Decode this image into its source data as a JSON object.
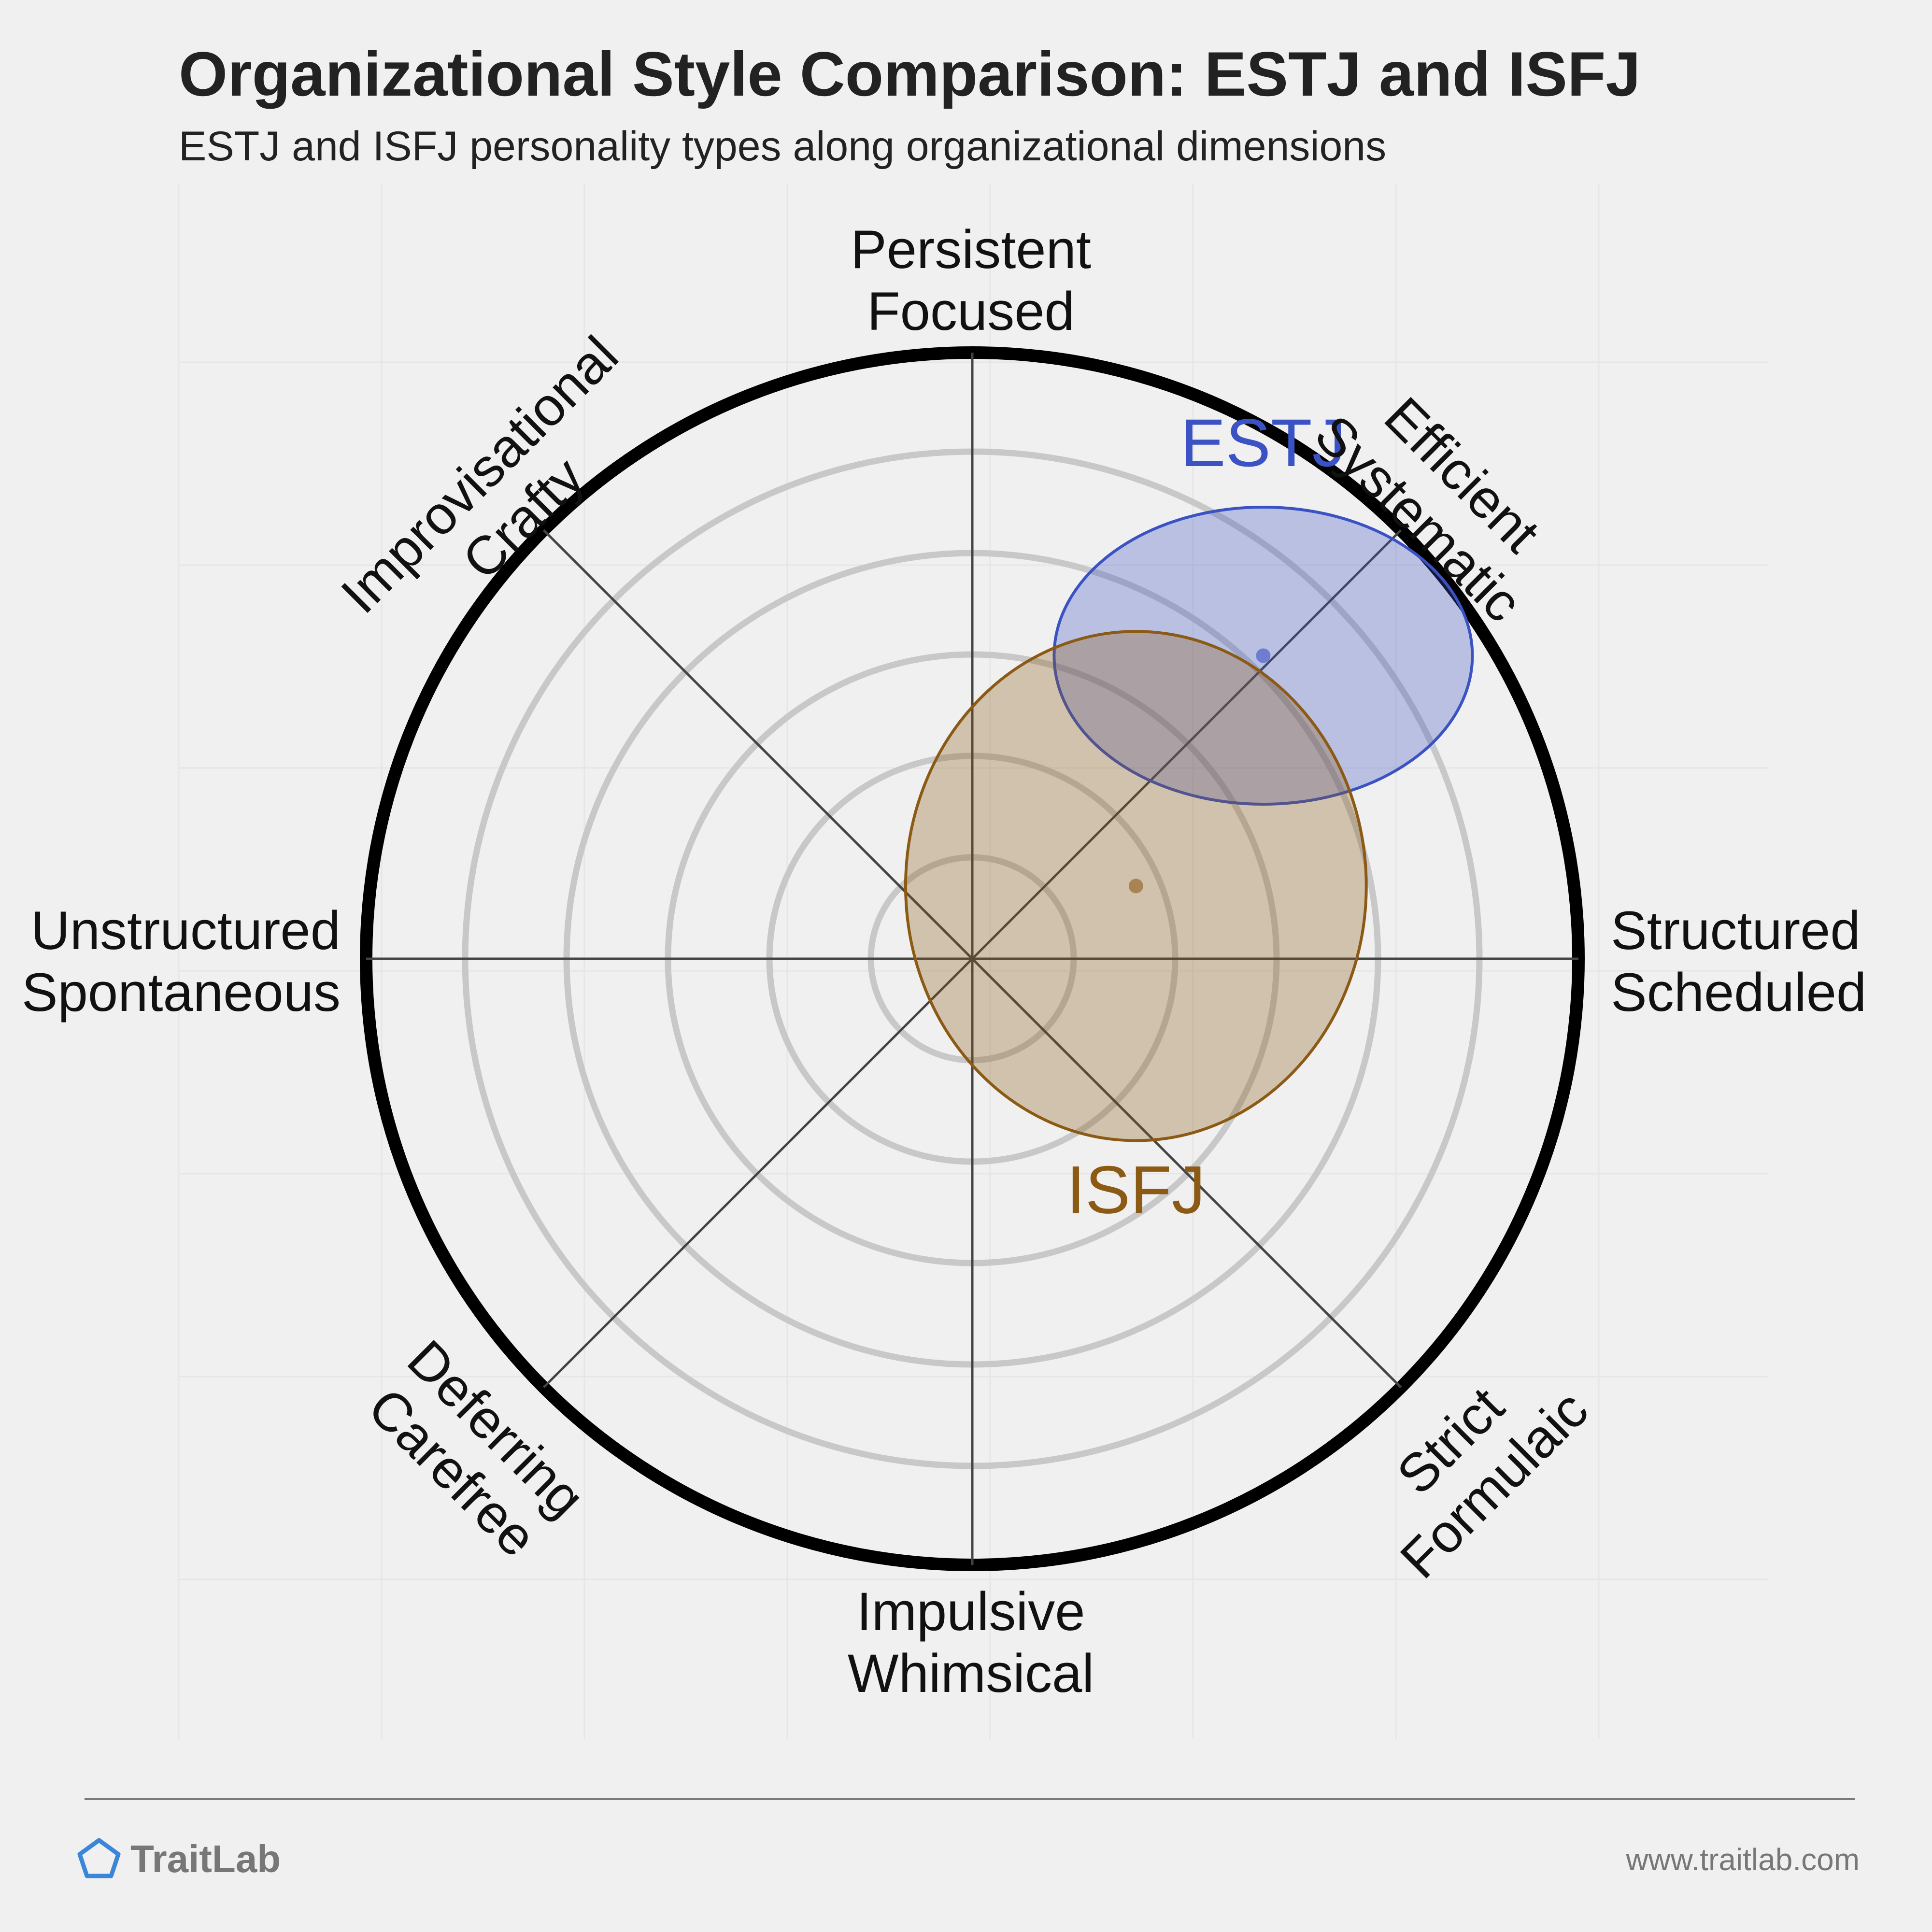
{
  "chart_data": {
    "type": "scatter",
    "title": "Organizational Style Comparison: ESTJ and ISFJ",
    "subtitle": "ESTJ and ISFJ personality types along organizational dimensions",
    "axes": [
      {
        "name": "Structured Scheduled",
        "lines": [
          "Structured",
          "Scheduled"
        ],
        "direction": "right"
      },
      {
        "name": "Efficient Systematic",
        "lines": [
          "Efficient",
          "Systematic"
        ],
        "direction": "upper-right"
      },
      {
        "name": "Persistent Focused",
        "lines": [
          "Persistent",
          "Focused"
        ],
        "direction": "top"
      },
      {
        "name": "Improvisational Crafty",
        "lines": [
          "Improvisational",
          "Crafty"
        ],
        "direction": "upper-left"
      },
      {
        "name": "Unstructured Spontaneous",
        "lines": [
          "Unstructured",
          "Spontaneous"
        ],
        "direction": "left"
      },
      {
        "name": "Deferring Carefree",
        "lines": [
          "Deferring",
          "Carefree"
        ],
        "direction": "lower-left"
      },
      {
        "name": "Impulsive Whimsical",
        "lines": [
          "Impulsive",
          "Whimsical"
        ],
        "direction": "bottom"
      },
      {
        "name": "Strict Formulaic",
        "lines": [
          "Strict",
          "Formulaic"
        ],
        "direction": "lower-right"
      }
    ],
    "range": [
      -100,
      100
    ],
    "grid": true,
    "series": [
      {
        "name": "ESTJ",
        "x": 48,
        "y": 50,
        "spread_x": 34.5,
        "spread_y": 24.5,
        "color": "#3b52c4"
      },
      {
        "name": "ISFJ",
        "x": 27,
        "y": 12,
        "spread_x": 38,
        "spread_y": 42,
        "color": "#8b5a14"
      }
    ]
  },
  "footer": {
    "brand": "TraitLab",
    "url": "www.traitlab.com"
  },
  "colors": {
    "background": "#f0f0f0",
    "grid": "#c8c8c8",
    "frame": "#000000",
    "estj": "#3b52c4",
    "isfj": "#8b5a14",
    "brand_icon": "#3a86d8"
  }
}
